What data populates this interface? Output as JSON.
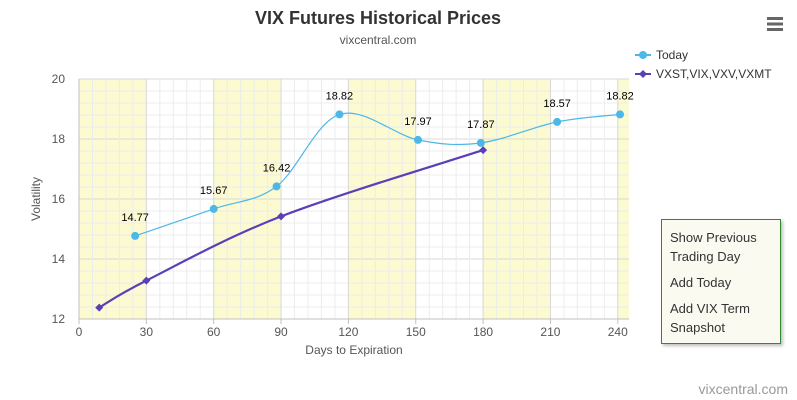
{
  "chart_data": {
    "type": "line",
    "title": "VIX Futures Historical Prices",
    "subtitle": "vixcentral.com",
    "xlabel": "Days to Expiration",
    "ylabel": "Volatility",
    "xlim": [
      0,
      245
    ],
    "ylim": [
      12,
      20
    ],
    "xticks": [
      0,
      30,
      60,
      90,
      120,
      150,
      180,
      210,
      240
    ],
    "yticks": [
      12,
      14,
      16,
      18,
      20
    ],
    "grid": true,
    "legend_position": "top-right",
    "shaded_bands": [
      [
        0,
        30
      ],
      [
        60,
        90
      ],
      [
        120,
        150
      ],
      [
        180,
        210
      ],
      [
        240,
        245
      ]
    ],
    "series": [
      {
        "name": "Today",
        "color": "#4db8e8",
        "marker": "circle",
        "x": [
          25,
          60,
          88,
          116,
          151,
          179,
          213,
          241
        ],
        "y": [
          14.77,
          15.67,
          16.42,
          18.82,
          17.97,
          17.87,
          18.57,
          18.82
        ],
        "labels": [
          "14.77",
          "15.67",
          "16.42",
          "18.82",
          "17.97",
          "17.87",
          "18.57",
          "18.82"
        ]
      },
      {
        "name": "VXST,VIX,VXV,VXMT",
        "color": "#5a3fb8",
        "marker": "diamond",
        "x": [
          9,
          30,
          90,
          180
        ],
        "y": [
          12.38,
          13.28,
          15.42,
          17.63
        ]
      }
    ]
  },
  "menu": {
    "items": [
      "Show Previous Trading Day",
      "Add Today",
      "Add VIX Term Snapshot"
    ]
  },
  "credit": "vixcentral.com"
}
